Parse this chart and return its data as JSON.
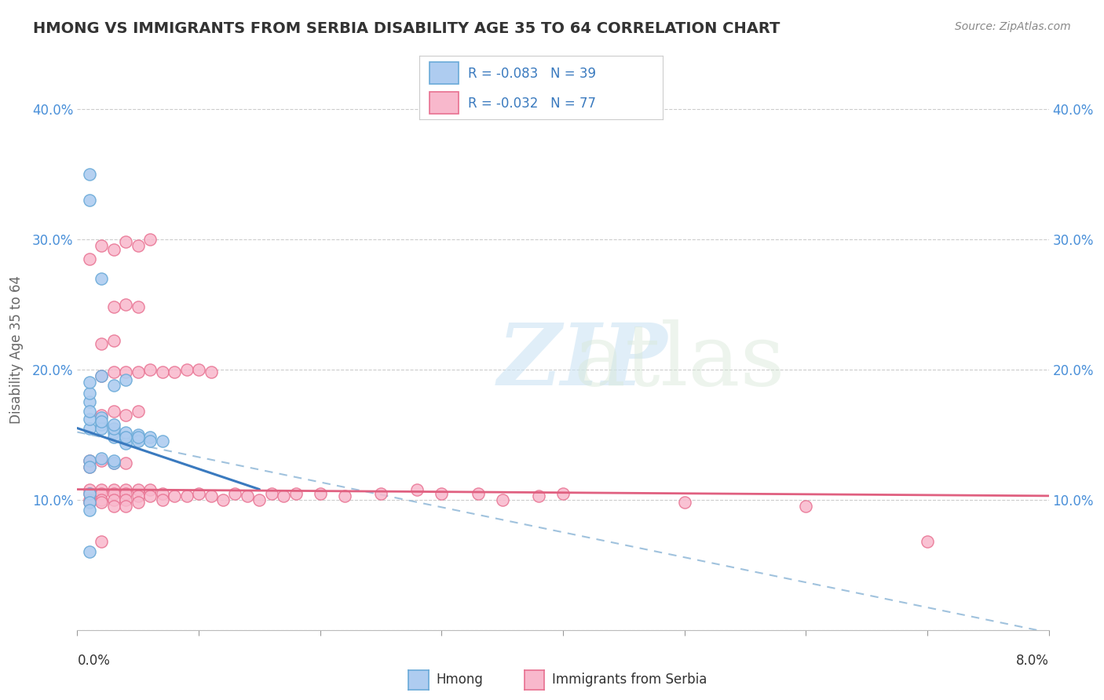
{
  "title": "HMONG VS IMMIGRANTS FROM SERBIA DISABILITY AGE 35 TO 64 CORRELATION CHART",
  "source": "Source: ZipAtlas.com",
  "ylabel": "Disability Age 35 to 64",
  "xlim": [
    0.0,
    0.08
  ],
  "ylim": [
    0.0,
    0.42
  ],
  "ytick_vals": [
    0.0,
    0.1,
    0.2,
    0.3,
    0.4
  ],
  "legend_r1": "R = -0.083",
  "legend_n1": "N = 39",
  "legend_r2": "R = -0.032",
  "legend_n2": "N = 77",
  "color_hmong_fill": "#aeccf0",
  "color_hmong_edge": "#6aaad8",
  "color_serbia_fill": "#f8b8cc",
  "color_serbia_edge": "#e87090",
  "color_blue_line": "#3a7abf",
  "color_pink_line": "#e06080",
  "color_dash_line": "#90b8d8",
  "hmong_x": [
    0.001,
    0.001,
    0.002,
    0.003,
    0.003,
    0.004,
    0.004,
    0.005,
    0.005,
    0.006,
    0.001,
    0.001,
    0.001,
    0.002,
    0.002,
    0.002,
    0.003,
    0.003,
    0.004,
    0.004,
    0.005,
    0.006,
    0.007,
    0.001,
    0.002,
    0.003,
    0.004,
    0.001,
    0.001,
    0.002,
    0.001,
    0.001,
    0.002,
    0.003,
    0.003,
    0.001,
    0.001,
    0.001,
    0.001
  ],
  "hmong_y": [
    0.155,
    0.162,
    0.158,
    0.152,
    0.148,
    0.148,
    0.143,
    0.15,
    0.145,
    0.148,
    0.175,
    0.168,
    0.182,
    0.163,
    0.155,
    0.16,
    0.155,
    0.158,
    0.152,
    0.148,
    0.148,
    0.145,
    0.145,
    0.19,
    0.195,
    0.188,
    0.192,
    0.33,
    0.35,
    0.27,
    0.13,
    0.125,
    0.132,
    0.128,
    0.13,
    0.105,
    0.098,
    0.092,
    0.06
  ],
  "serbia_x": [
    0.001,
    0.001,
    0.001,
    0.001,
    0.002,
    0.002,
    0.002,
    0.002,
    0.003,
    0.003,
    0.003,
    0.003,
    0.004,
    0.004,
    0.004,
    0.004,
    0.005,
    0.005,
    0.005,
    0.006,
    0.006,
    0.007,
    0.007,
    0.008,
    0.009,
    0.01,
    0.011,
    0.012,
    0.013,
    0.014,
    0.015,
    0.016,
    0.017,
    0.018,
    0.02,
    0.022,
    0.025,
    0.028,
    0.03,
    0.033,
    0.035,
    0.038,
    0.04,
    0.002,
    0.003,
    0.004,
    0.005,
    0.006,
    0.007,
    0.008,
    0.009,
    0.01,
    0.011,
    0.001,
    0.002,
    0.003,
    0.004,
    0.005,
    0.006,
    0.003,
    0.004,
    0.005,
    0.002,
    0.003,
    0.002,
    0.003,
    0.004,
    0.005,
    0.001,
    0.001,
    0.002,
    0.003,
    0.004,
    0.05,
    0.06,
    0.07,
    0.002
  ],
  "serbia_y": [
    0.108,
    0.105,
    0.1,
    0.098,
    0.108,
    0.105,
    0.1,
    0.098,
    0.108,
    0.105,
    0.1,
    0.095,
    0.108,
    0.105,
    0.1,
    0.095,
    0.108,
    0.103,
    0.098,
    0.108,
    0.103,
    0.105,
    0.1,
    0.103,
    0.103,
    0.105,
    0.103,
    0.1,
    0.105,
    0.103,
    0.1,
    0.105,
    0.103,
    0.105,
    0.105,
    0.103,
    0.105,
    0.108,
    0.105,
    0.105,
    0.1,
    0.103,
    0.105,
    0.195,
    0.198,
    0.198,
    0.198,
    0.2,
    0.198,
    0.198,
    0.2,
    0.2,
    0.198,
    0.285,
    0.295,
    0.292,
    0.298,
    0.295,
    0.3,
    0.248,
    0.25,
    0.248,
    0.22,
    0.222,
    0.165,
    0.168,
    0.165,
    0.168,
    0.13,
    0.125,
    0.13,
    0.128,
    0.128,
    0.098,
    0.095,
    0.068,
    0.068
  ],
  "hmong_line_x0": 0.0,
  "hmong_line_x1": 0.015,
  "hmong_line_y0": 0.155,
  "hmong_line_y1": 0.108,
  "serbia_line_x0": 0.0,
  "serbia_line_x1": 0.08,
  "serbia_line_y0": 0.108,
  "serbia_line_y1": 0.103,
  "dash_line_x0": 0.0,
  "dash_line_x1": 0.079,
  "dash_line_y0": 0.152,
  "dash_line_y1": 0.0
}
